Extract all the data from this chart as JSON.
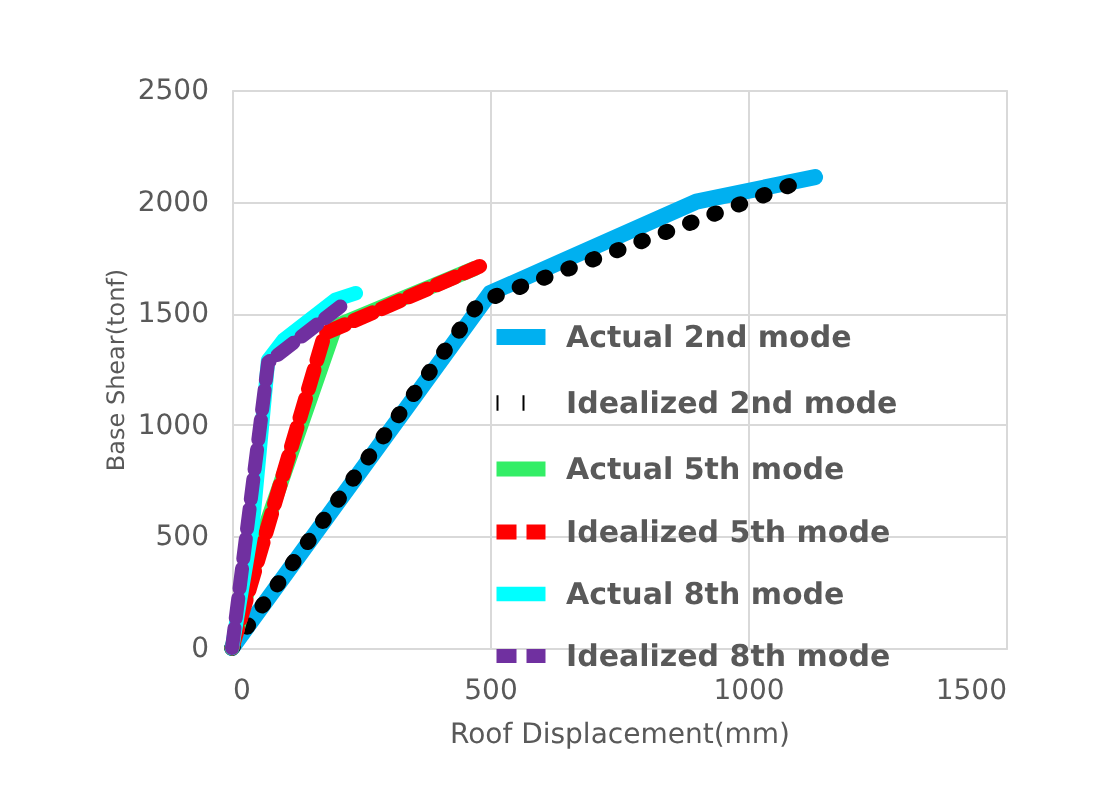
{
  "chart_data": {
    "type": "line",
    "xlabel": "Roof Displacement(mm)",
    "ylabel": "Base Shear(tonf)",
    "xlim": [
      0,
      1500
    ],
    "xticks": [
      0,
      500,
      1000,
      1500
    ],
    "ylim": [
      0,
      2500
    ],
    "yticks": [
      0,
      500,
      1000,
      1500,
      2000,
      2500
    ],
    "grid": true,
    "legend": "right",
    "marker": "none",
    "series": [
      {
        "name": "Actual 2nd mode",
        "color": "#00b0f0",
        "line_style": "solid",
        "x": [
          0,
          500,
          900,
          1130
        ],
        "values": [
          0,
          1590,
          2000,
          2110
        ]
      },
      {
        "name": "Idealized 2nd mode",
        "color": "#000000",
        "line_style": "dotted",
        "x": [
          0,
          480,
          1090
        ],
        "values": [
          0,
          1550,
          2080
        ]
      },
      {
        "name": "Actual 5th mode",
        "color": "#33ee66",
        "line_style": "solid",
        "x": [
          0,
          60,
          200,
          470
        ],
        "values": [
          0,
          510,
          1440,
          1700
        ]
      },
      {
        "name": "Idealized 5th mode",
        "color": "#ff0000",
        "line_style": "dashed",
        "x": [
          0,
          180,
          480
        ],
        "values": [
          0,
          1410,
          1710
        ]
      },
      {
        "name": "Actual 8th mode",
        "color": "#00ffff",
        "line_style": "solid",
        "x": [
          0,
          40,
          70,
          100,
          200,
          240
        ],
        "values": [
          0,
          550,
          1290,
          1380,
          1560,
          1590
        ]
      },
      {
        "name": "Idealized 8th mode",
        "color": "#7030a0",
        "line_style": "dashed",
        "x": [
          0,
          70,
          210
        ],
        "values": [
          0,
          1280,
          1530
        ]
      }
    ]
  }
}
